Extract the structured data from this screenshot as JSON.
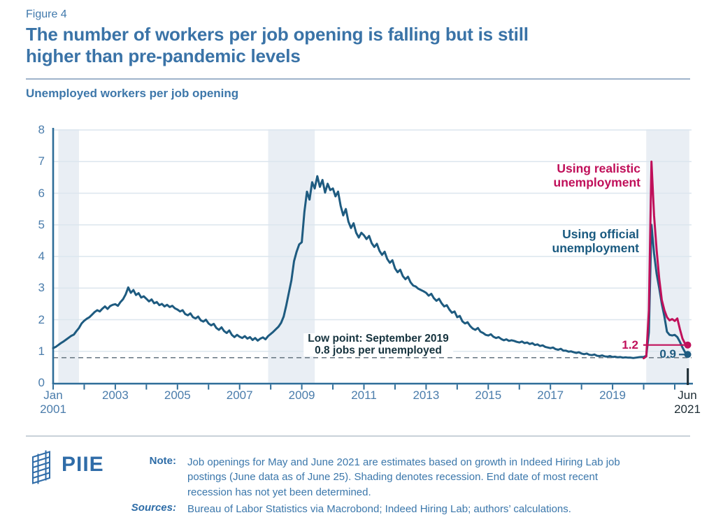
{
  "header": {
    "figure_label": "Figure 4",
    "title": "The number of workers per job opening is falling but is still\nhigher than pre-pandemic levels",
    "subtitle": "Unemployed workers per job opening"
  },
  "chart_data": {
    "type": "line",
    "title": "Unemployed workers per job opening",
    "ylabel": "Unemployed workers per job opening",
    "grid": true,
    "y_axis": {
      "min": 0,
      "max": 8,
      "ticks": [
        "0",
        "1",
        "2",
        "3",
        "4",
        "5",
        "6",
        "7",
        "8"
      ]
    },
    "x_axis": {
      "start_label": "Jan\n2001",
      "end_label": "Jun\n2021",
      "start_year": 2001,
      "end_year": 2021.42,
      "year_labels": [
        {
          "label": "2003",
          "year": 2003
        },
        {
          "label": "2005",
          "year": 2005
        },
        {
          "label": "2007",
          "year": 2007
        },
        {
          "label": "2009",
          "year": 2009
        },
        {
          "label": "2011",
          "year": 2011
        },
        {
          "label": "2013",
          "year": 2013
        },
        {
          "label": "2015",
          "year": 2015
        },
        {
          "label": "2017",
          "year": 2017
        },
        {
          "label": "2019",
          "year": 2019
        }
      ]
    },
    "recessions": [
      {
        "start": 2001.167,
        "end": 2001.833
      },
      {
        "start": 2007.917,
        "end": 2009.417
      },
      {
        "start": 2020.083,
        "end": 2021.47
      }
    ],
    "reference_line": {
      "value": 0.8,
      "annotation": "Low point: September 2019\n0.8 jobs per unemployed"
    },
    "series": [
      {
        "name": "Using official\nunemployment",
        "color": "#1E5B80",
        "start_x": 2001.0,
        "step_months": 1,
        "end_value_label": "0.9",
        "values": [
          1.1,
          1.14,
          1.2,
          1.26,
          1.31,
          1.37,
          1.43,
          1.49,
          1.53,
          1.64,
          1.74,
          1.88,
          1.97,
          2.03,
          2.08,
          2.16,
          2.24,
          2.3,
          2.26,
          2.35,
          2.42,
          2.34,
          2.43,
          2.47,
          2.49,
          2.44,
          2.56,
          2.65,
          2.8,
          3.02,
          2.85,
          2.94,
          2.78,
          2.84,
          2.7,
          2.74,
          2.66,
          2.58,
          2.64,
          2.52,
          2.56,
          2.46,
          2.5,
          2.42,
          2.47,
          2.4,
          2.44,
          2.36,
          2.32,
          2.26,
          2.3,
          2.18,
          2.14,
          2.2,
          2.08,
          2.04,
          2.1,
          1.98,
          1.94,
          2.0,
          1.88,
          1.82,
          1.87,
          1.74,
          1.68,
          1.76,
          1.64,
          1.58,
          1.66,
          1.52,
          1.45,
          1.52,
          1.46,
          1.42,
          1.48,
          1.4,
          1.45,
          1.36,
          1.42,
          1.34,
          1.4,
          1.44,
          1.38,
          1.48,
          1.55,
          1.62,
          1.7,
          1.78,
          1.9,
          2.1,
          2.45,
          2.85,
          3.25,
          3.85,
          4.15,
          4.38,
          4.45,
          5.4,
          6.05,
          5.8,
          6.35,
          6.15,
          6.54,
          6.2,
          6.42,
          6.02,
          6.3,
          6.1,
          6.15,
          5.9,
          6.05,
          5.6,
          5.3,
          5.5,
          5.1,
          4.9,
          5.05,
          4.75,
          4.6,
          4.75,
          4.67,
          4.55,
          4.65,
          4.42,
          4.3,
          4.4,
          4.18,
          4.05,
          4.15,
          3.92,
          3.8,
          3.88,
          3.62,
          3.5,
          3.58,
          3.38,
          3.28,
          3.36,
          3.18,
          3.08,
          3.05,
          2.98,
          2.94,
          2.9,
          2.85,
          2.76,
          2.82,
          2.68,
          2.6,
          2.66,
          2.52,
          2.42,
          2.46,
          2.32,
          2.22,
          2.26,
          2.08,
          2.12,
          1.95,
          1.88,
          1.92,
          1.8,
          1.72,
          1.68,
          1.74,
          1.62,
          1.58,
          1.52,
          1.5,
          1.54,
          1.46,
          1.42,
          1.45,
          1.39,
          1.35,
          1.38,
          1.33,
          1.35,
          1.33,
          1.3,
          1.28,
          1.31,
          1.26,
          1.28,
          1.23,
          1.26,
          1.2,
          1.22,
          1.17,
          1.19,
          1.14,
          1.12,
          1.1,
          1.12,
          1.07,
          1.05,
          1.08,
          1.02,
          1.02,
          0.99,
          1.0,
          0.97,
          0.95,
          0.97,
          0.93,
          0.91,
          0.93,
          0.89,
          0.88,
          0.9,
          0.86,
          0.85,
          0.87,
          0.84,
          0.83,
          0.85,
          0.82,
          0.83,
          0.81,
          0.82,
          0.8,
          0.81,
          0.8,
          0.8,
          0.79,
          0.8,
          0.81,
          0.82,
          0.82,
          0.86,
          1.6,
          5.0,
          4.1,
          3.45,
          3.0,
          2.5,
          2.1,
          1.62,
          1.52,
          1.5,
          1.52,
          1.45,
          1.3,
          1.12,
          0.97,
          0.9
        ]
      },
      {
        "name": "Using realistic\nunemployment",
        "color": "#C0105A",
        "start_x": 2020.0,
        "step_months": 1,
        "end_value_label": "1.2",
        "values": [
          0.78,
          0.84,
          2.3,
          7.0,
          5.3,
          4.2,
          3.3,
          2.62,
          2.3,
          2.08,
          1.98,
          2.02,
          1.96,
          2.04,
          1.7,
          1.4,
          1.24,
          1.2
        ]
      }
    ],
    "colors": {
      "recession_band": "#E9EEF4",
      "gridline": "#DCE6EE",
      "axis": "#2E6D99",
      "dashed_reference": "#707E89",
      "data_end_marker": "#1C2B33"
    }
  },
  "footer": {
    "logo_text": "PIIE",
    "note_label": "Note:",
    "note_text": "Job openings for May and June 2021 are estimates based on growth in Indeed Hiring Lab job\npostings (June data as of June 25). Shading denotes recession. End date of most recent\nrecession has not yet been determined.",
    "sources_label": "Sources:",
    "sources_text": "Bureau of Labor Statistics via Macrobond; Indeed Hiring Lab; authors’ calculations."
  }
}
